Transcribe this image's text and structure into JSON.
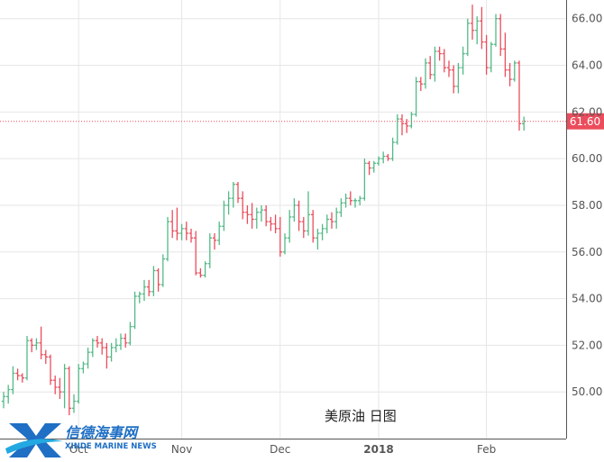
{
  "chart_data": {
    "type": "ohlc",
    "title": "",
    "annotation": "美原油 日图",
    "xlabel": "",
    "ylabel": "",
    "ylim": [
      48.0,
      66.8
    ],
    "y_ticks": [
      50,
      52,
      54,
      56,
      58,
      60,
      62,
      64,
      66
    ],
    "y_tick_labels": [
      "50.00",
      "52.00",
      "54.00",
      "56.00",
      "58.00",
      "60.00",
      "62.00",
      "64.00",
      "66.00"
    ],
    "x_ticks": [
      {
        "label": "Oct",
        "bar": 16,
        "bold": false
      },
      {
        "label": "Nov",
        "bar": 38,
        "bold": false
      },
      {
        "label": "Dec",
        "bar": 59,
        "bold": false
      },
      {
        "label": "2018",
        "bar": 80,
        "bold": true
      },
      {
        "label": "Feb",
        "bar": 103,
        "bold": false
      }
    ],
    "last_price": 61.6,
    "last_price_label": "61.60",
    "grid": true,
    "colors": {
      "up": "#53b987",
      "down": "#eb4d5c",
      "grid": "#e6e6e6",
      "last_line": "#eb4d5c"
    },
    "bars": [
      [
        49.6,
        50.0,
        49.3,
        49.8
      ],
      [
        49.8,
        50.3,
        49.5,
        50.1
      ],
      [
        50.1,
        51.1,
        49.9,
        50.8
      ],
      [
        50.8,
        51.0,
        50.5,
        50.7
      ],
      [
        50.7,
        50.8,
        50.4,
        50.6
      ],
      [
        50.6,
        52.4,
        50.5,
        52.2
      ],
      [
        52.2,
        52.3,
        51.7,
        52.0
      ],
      [
        52.0,
        52.3,
        51.8,
        52.1
      ],
      [
        52.1,
        52.8,
        51.4,
        51.6
      ],
      [
        51.6,
        51.8,
        51.2,
        51.5
      ],
      [
        51.5,
        51.6,
        50.3,
        50.5
      ],
      [
        50.5,
        50.7,
        49.9,
        50.2
      ],
      [
        50.2,
        50.6,
        49.7,
        50.0
      ],
      [
        50.0,
        51.2,
        49.3,
        51.0
      ],
      [
        51.0,
        51.1,
        49.0,
        49.3
      ],
      [
        49.3,
        49.9,
        49.1,
        49.6
      ],
      [
        49.6,
        51.2,
        49.5,
        51.0
      ],
      [
        51.0,
        51.3,
        50.8,
        51.2
      ],
      [
        51.2,
        51.9,
        51.0,
        51.7
      ],
      [
        51.7,
        52.3,
        51.5,
        52.2
      ],
      [
        52.2,
        52.4,
        51.9,
        52.1
      ],
      [
        52.1,
        52.3,
        51.6,
        51.9
      ],
      [
        51.9,
        52.1,
        51.0,
        51.5
      ],
      [
        51.5,
        52.1,
        51.3,
        51.9
      ],
      [
        51.9,
        52.3,
        51.7,
        52.0
      ],
      [
        52.0,
        52.5,
        51.8,
        52.3
      ],
      [
        52.3,
        52.5,
        51.9,
        52.1
      ],
      [
        52.1,
        53.0,
        52.0,
        52.8
      ],
      [
        52.8,
        54.3,
        52.7,
        54.1
      ],
      [
        54.1,
        54.3,
        53.8,
        54.2
      ],
      [
        54.2,
        54.8,
        53.9,
        54.5
      ],
      [
        54.5,
        54.8,
        54.1,
        54.3
      ],
      [
        54.3,
        55.4,
        54.1,
        55.2
      ],
      [
        55.2,
        55.3,
        54.3,
        54.6
      ],
      [
        54.6,
        55.9,
        54.5,
        55.7
      ],
      [
        55.7,
        57.5,
        55.6,
        57.3
      ],
      [
        57.3,
        57.8,
        56.6,
        56.9
      ],
      [
        56.9,
        57.9,
        56.5,
        56.8
      ],
      [
        56.8,
        57.2,
        56.5,
        57.0
      ],
      [
        57.0,
        57.3,
        56.5,
        56.8
      ],
      [
        56.8,
        57.0,
        56.4,
        56.6
      ],
      [
        56.6,
        56.9,
        55.0,
        55.1
      ],
      [
        55.1,
        55.3,
        54.9,
        55.0
      ],
      [
        55.0,
        55.6,
        54.9,
        55.5
      ],
      [
        55.5,
        56.8,
        55.3,
        56.6
      ],
      [
        56.6,
        56.8,
        56.1,
        56.5
      ],
      [
        56.5,
        57.3,
        56.3,
        57.1
      ],
      [
        57.1,
        58.2,
        56.9,
        58.0
      ],
      [
        58.0,
        58.6,
        57.6,
        58.3
      ],
      [
        58.3,
        59.0,
        57.9,
        58.9
      ],
      [
        58.9,
        59.0,
        58.1,
        58.3
      ],
      [
        58.3,
        58.6,
        57.4,
        57.7
      ],
      [
        57.7,
        58.0,
        57.2,
        57.6
      ],
      [
        57.6,
        58.1,
        57.0,
        57.4
      ],
      [
        57.4,
        57.9,
        57.0,
        57.7
      ],
      [
        57.7,
        58.0,
        57.3,
        57.8
      ],
      [
        57.8,
        58.0,
        57.1,
        57.3
      ],
      [
        57.3,
        57.5,
        56.9,
        57.2
      ],
      [
        57.2,
        57.6,
        56.8,
        57.0
      ],
      [
        57.0,
        57.5,
        55.8,
        56.0
      ],
      [
        56.0,
        56.8,
        55.9,
        56.6
      ],
      [
        56.6,
        57.8,
        56.4,
        57.5
      ],
      [
        57.5,
        58.3,
        57.3,
        58.0
      ],
      [
        58.0,
        58.2,
        56.9,
        57.3
      ],
      [
        57.3,
        57.5,
        56.6,
        56.9
      ],
      [
        56.9,
        58.6,
        56.7,
        57.6
      ],
      [
        57.6,
        57.8,
        56.4,
        56.6
      ],
      [
        56.6,
        57.0,
        56.1,
        56.8
      ],
      [
        56.8,
        57.2,
        56.5,
        57.0
      ],
      [
        57.0,
        57.6,
        56.8,
        57.4
      ],
      [
        57.4,
        57.7,
        57.0,
        57.3
      ],
      [
        57.3,
        57.9,
        57.0,
        57.7
      ],
      [
        57.7,
        58.3,
        57.5,
        58.1
      ],
      [
        58.1,
        58.5,
        57.9,
        58.3
      ],
      [
        58.3,
        58.6,
        58.0,
        58.2
      ],
      [
        58.2,
        58.3,
        57.9,
        58.2
      ],
      [
        58.2,
        58.4,
        58.0,
        58.3
      ],
      [
        58.3,
        60.0,
        58.2,
        59.8
      ],
      [
        59.8,
        59.9,
        59.3,
        59.6
      ],
      [
        59.6,
        59.9,
        59.4,
        59.8
      ],
      [
        59.8,
        60.1,
        59.7,
        60.0
      ],
      [
        60.0,
        60.3,
        59.8,
        60.1
      ],
      [
        60.1,
        60.2,
        59.9,
        60.0
      ],
      [
        60.0,
        60.9,
        59.9,
        60.7
      ],
      [
        60.7,
        61.9,
        60.6,
        61.7
      ],
      [
        61.7,
        61.9,
        61.0,
        61.5
      ],
      [
        61.5,
        61.7,
        61.1,
        61.4
      ],
      [
        61.4,
        62.0,
        61.3,
        61.9
      ],
      [
        61.9,
        63.5,
        61.8,
        63.3
      ],
      [
        63.3,
        63.5,
        62.9,
        63.2
      ],
      [
        63.2,
        64.3,
        63.0,
        64.1
      ],
      [
        64.1,
        64.4,
        63.4,
        63.6
      ],
      [
        63.6,
        64.8,
        63.3,
        64.6
      ],
      [
        64.6,
        64.8,
        64.2,
        64.5
      ],
      [
        64.5,
        64.7,
        63.7,
        63.9
      ],
      [
        63.9,
        64.2,
        63.5,
        63.8
      ],
      [
        63.8,
        64.0,
        62.8,
        63.1
      ],
      [
        63.1,
        64.1,
        62.8,
        63.9
      ],
      [
        63.9,
        64.8,
        63.6,
        64.5
      ],
      [
        64.5,
        66.0,
        64.4,
        65.8
      ],
      [
        65.8,
        66.6,
        65.1,
        65.5
      ],
      [
        65.5,
        66.1,
        64.9,
        65.9
      ],
      [
        65.9,
        66.5,
        64.7,
        65.0
      ],
      [
        65.0,
        65.3,
        63.6,
        63.9
      ],
      [
        63.9,
        65.0,
        63.7,
        64.9
      ],
      [
        64.9,
        66.2,
        64.8,
        66.0
      ],
      [
        66.0,
        66.2,
        64.4,
        64.7
      ],
      [
        64.7,
        65.4,
        63.5,
        63.8
      ],
      [
        63.8,
        64.1,
        63.1,
        63.4
      ],
      [
        63.4,
        64.2,
        63.3,
        64.1
      ],
      [
        64.1,
        64.2,
        61.2,
        61.5
      ],
      [
        61.5,
        61.8,
        61.2,
        61.6
      ]
    ]
  },
  "watermark": {
    "cn": "信德海事网",
    "en": "XINDE MARINE NEWS",
    "colors": {
      "primary": "#1f6fc4",
      "secondary": "#23a9e1"
    }
  }
}
